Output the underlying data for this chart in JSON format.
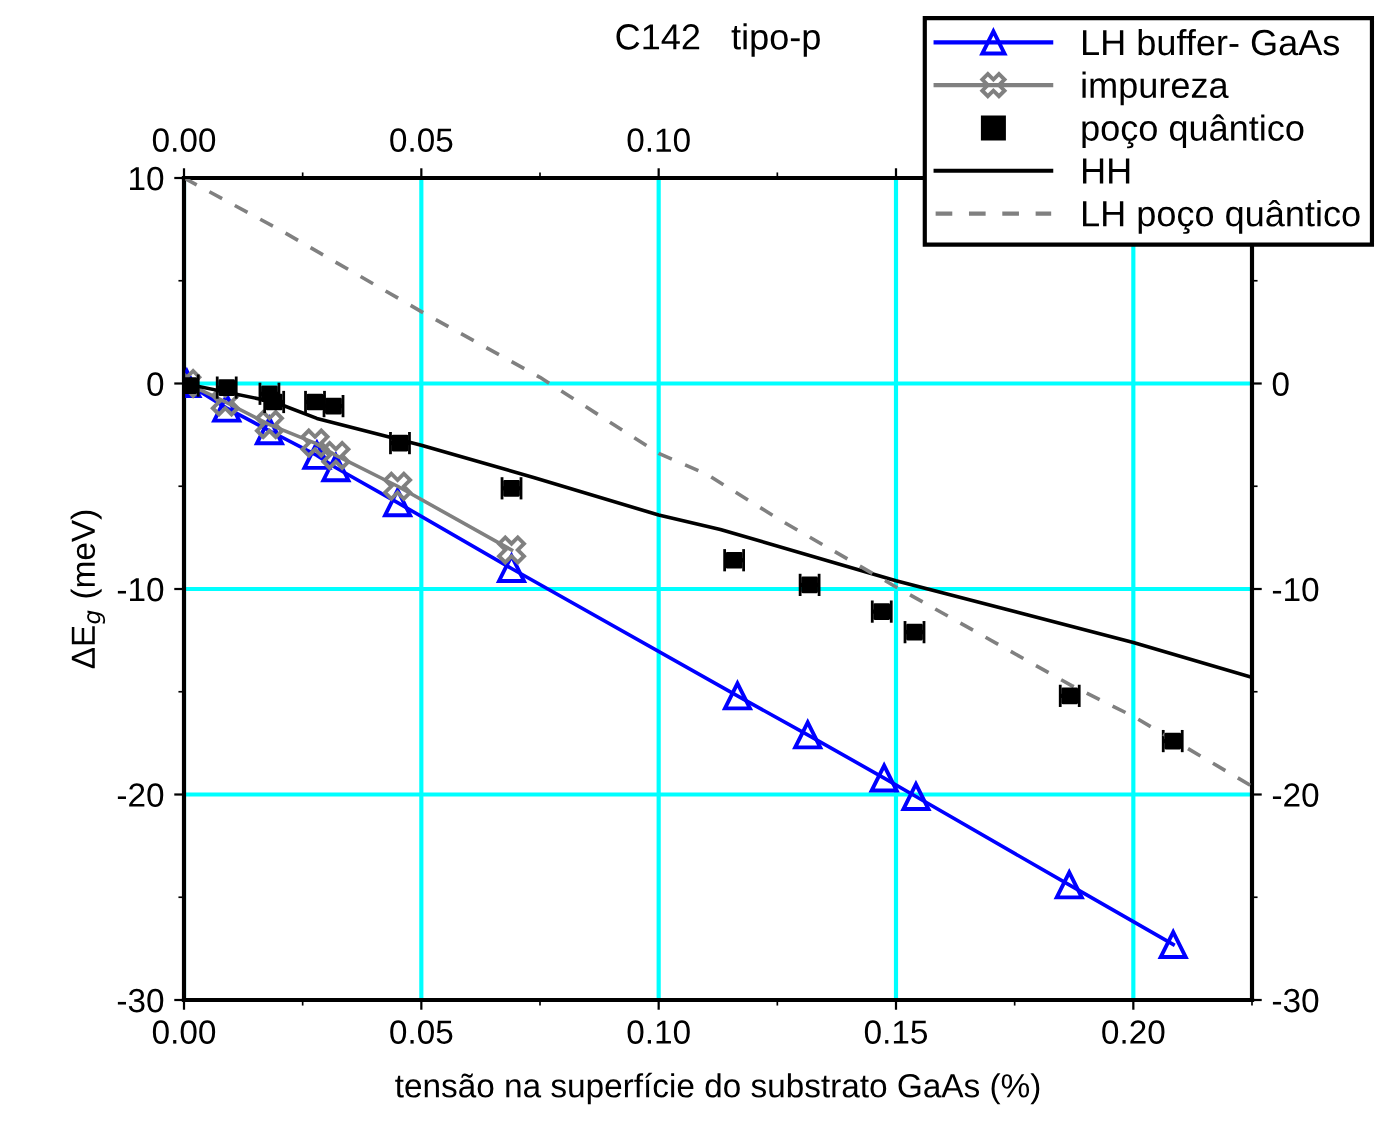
{
  "chart_data": {
    "type": "line",
    "title": "C142   tipo-p",
    "xlabel": "tensão na superfície do substrato GaAs (%)",
    "ylabel": "ΔE$_{g}$ (meV)",
    "xlim": [
      0,
      0.225
    ],
    "ylim": [
      -30,
      10
    ],
    "xticks": [
      {
        "value": 0,
        "label": "0.00"
      },
      {
        "value": 0.05,
        "label": "0.05"
      },
      {
        "value": 0.1,
        "label": "0.10"
      },
      {
        "value": 0.15,
        "label": "0.15"
      },
      {
        "value": 0.2,
        "label": "0.20"
      }
    ],
    "yticks": [
      -30,
      -20,
      -10,
      0,
      10
    ],
    "x2lim": [
      0,
      0.225
    ],
    "x2ticks": [
      {
        "value": 0,
        "label": "0.00"
      },
      {
        "value": 0.05,
        "label": "0.05"
      },
      {
        "value": 0.1,
        "label": "0.10"
      },
      {
        "value": 0.15,
        "label": null
      },
      {
        "value": 0.2,
        "label": null
      }
    ],
    "y2lim": [
      -30,
      10
    ],
    "y2ticks": [
      -30,
      -20,
      -10,
      0,
      {
        "value": 10,
        "label": null
      }
    ],
    "grid": true,
    "legend": "top right",
    "series": [
      {
        "name": "LH buffer- GaAs",
        "color": "#0000ff",
        "marker": "triangle",
        "line_style": "solid",
        "x": [
          0.0006,
          0.009,
          0.018,
          0.028,
          0.032,
          0.045,
          0.069,
          0.1166,
          0.1314,
          0.1475,
          0.1542,
          0.1865,
          0.2084
        ],
        "values": [
          0,
          -1.2,
          -2.3,
          -3.5,
          -4.1,
          -5.8,
          -9.0,
          -15.2,
          -17.1,
          -19.2,
          -20.1,
          -24.4,
          -27.3
        ]
      },
      {
        "name": "impureza",
        "color": "#808080",
        "marker": "cross",
        "line_style": "solid",
        "x": [
          0.0006,
          0.0087,
          0.018,
          0.0276,
          0.032,
          0.045,
          0.069
        ],
        "values": [
          0,
          -0.9,
          -2.0,
          -2.9,
          -3.5,
          -5.0,
          -8.1
        ]
      },
      {
        "name": "poço quântico",
        "type": "scatter",
        "color": "#000000",
        "marker": "square",
        "x": [
          0.001,
          0.009,
          0.018,
          0.019,
          0.0276,
          0.0315,
          0.0455,
          0.069,
          0.1159,
          0.1318,
          0.147,
          0.1539,
          0.1866,
          0.2083
        ],
        "values": [
          -0.1,
          -0.2,
          -0.5,
          -0.9,
          -0.9,
          -1.1,
          -2.9,
          -5.1,
          -8.6,
          -9.8,
          -11.1,
          -12.1,
          -15.2,
          -17.4
        ],
        "xerrors": [
          0.002,
          0.002,
          0.002,
          0.002,
          0.002,
          0.002,
          0.002,
          0.002,
          0.002,
          0.002,
          0.002,
          0.002,
          0.002,
          0.002
        ]
      },
      {
        "name": "HH",
        "color": "#000000",
        "marker": "none",
        "line_style": "solid",
        "x": [
          0,
          0.019,
          0.028,
          0.05,
          0.074,
          0.1,
          0.113,
          0.15,
          0.2,
          0.225
        ],
        "values": [
          0,
          -0.9,
          -1.7,
          -3.0,
          -4.6,
          -6.4,
          -7.1,
          -9.6,
          -12.6,
          -14.3
        ]
      },
      {
        "name": "LH poço quântico",
        "color": "#808080",
        "marker": "none",
        "line_style": "dashed",
        "x": [
          0,
          0.02,
          0.05,
          0.075,
          0.1,
          0.11,
          0.126,
          0.15,
          0.187,
          0.2,
          0.225
        ],
        "values": [
          10,
          7.5,
          3.5,
          0.3,
          -3.4,
          -4.4,
          -6.7,
          -9.9,
          -14.7,
          -16.2,
          -19.6
        ]
      }
    ]
  }
}
